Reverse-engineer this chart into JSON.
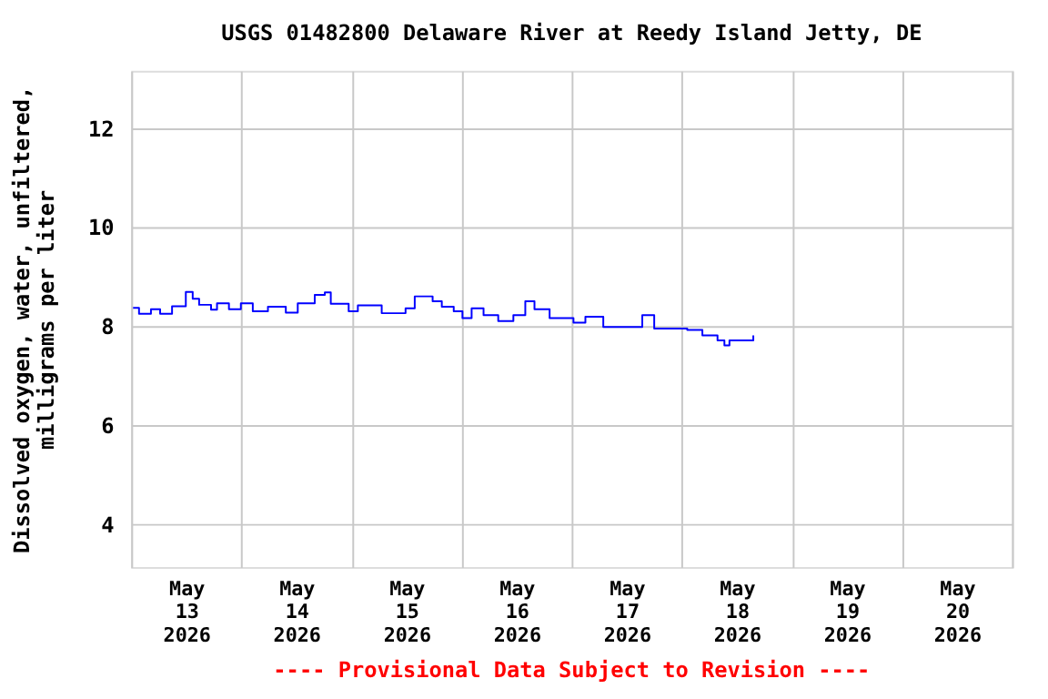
{
  "chart_data": {
    "type": "step",
    "title": "USGS 01482800 Delaware River at Reedy Island Jetty, DE",
    "ylabel": "Dissolved oxygen, water, unfiltered,\nmilligrams per liter",
    "annotations": [
      "---- Provisional Data Subject to Revision ----"
    ],
    "x": [
      "2026-05-13T00:24",
      "2026-05-13T01:42",
      "2026-05-13T04:18",
      "2026-05-13T06:18",
      "2026-05-13T08:54",
      "2026-05-13T11:54",
      "2026-05-13T13:24",
      "2026-05-13T14:48",
      "2026-05-13T17:24",
      "2026-05-13T18:42",
      "2026-05-13T21:18",
      "2026-05-13T23:54",
      "2026-05-14T02:30",
      "2026-05-14T05:48",
      "2026-05-14T09:42",
      "2026-05-14T12:18",
      "2026-05-14T16:00",
      "2026-05-14T18:12",
      "2026-05-14T19:30",
      "2026-05-14T23:24",
      "2026-05-15T01:24",
      "2026-05-15T06:36",
      "2026-05-15T11:48",
      "2026-05-15T13:48",
      "2026-05-15T17:42",
      "2026-05-15T19:42",
      "2026-05-15T22:18",
      "2026-05-16T00:12",
      "2026-05-16T02:12",
      "2026-05-16T04:48",
      "2026-05-16T08:00",
      "2026-05-16T11:18",
      "2026-05-16T13:54",
      "2026-05-16T15:54",
      "2026-05-16T19:12",
      "2026-05-17T00:24",
      "2026-05-17T03:00",
      "2026-05-17T06:54",
      "2026-05-17T13:24",
      "2026-05-17T15:24",
      "2026-05-17T18:00",
      "2026-05-17T21:18",
      "2026-05-18T01:12",
      "2026-05-18T03:12",
      "2026-05-18T04:30",
      "2026-05-18T07:48",
      "2026-05-18T09:18",
      "2026-05-18T10:24",
      "2026-05-18T13:36",
      "2026-05-18T15:36"
    ],
    "series": [
      {
        "color": "#0000ff",
        "values": [
          8.37,
          8.25,
          8.34,
          8.25,
          8.4,
          8.69,
          8.55,
          8.43,
          8.33,
          8.46,
          8.34,
          8.46,
          8.3,
          8.39,
          8.27,
          8.46,
          8.63,
          8.68,
          8.45,
          8.3,
          8.42,
          8.26,
          8.36,
          8.6,
          8.5,
          8.39,
          8.3,
          8.16,
          8.36,
          8.22,
          8.1,
          8.22,
          8.5,
          8.34,
          8.16,
          8.07,
          8.19,
          7.98,
          7.98,
          8.22,
          7.95,
          7.95,
          7.92,
          7.92,
          7.81,
          7.71,
          7.61,
          7.71,
          7.71,
          7.81
        ]
      }
    ],
    "xlim": [
      "2026-05-13T00:00",
      "2026-05-21T00:00"
    ],
    "xticks": [
      {
        "value": "2026-05-13T00:00",
        "label": null
      },
      {
        "value": "2026-05-13T12:00",
        "label": "May\n13\n2026"
      },
      {
        "value": "2026-05-14T00:00",
        "label": null
      },
      {
        "value": "2026-05-14T12:00",
        "label": "May\n14\n2026"
      },
      {
        "value": "2026-05-15T00:00",
        "label": null
      },
      {
        "value": "2026-05-15T12:00",
        "label": "May\n15\n2026"
      },
      {
        "value": "2026-05-16T00:00",
        "label": null
      },
      {
        "value": "2026-05-16T12:00",
        "label": "May\n16\n2026"
      },
      {
        "value": "2026-05-17T00:00",
        "label": null
      },
      {
        "value": "2026-05-17T12:00",
        "label": "May\n17\n2026"
      },
      {
        "value": "2026-05-18T00:00",
        "label": null
      },
      {
        "value": "2026-05-18T12:00",
        "label": "May\n18\n2026"
      },
      {
        "value": "2026-05-19T00:00",
        "label": null
      },
      {
        "value": "2026-05-19T12:00",
        "label": "May\n19\n2026"
      },
      {
        "value": "2026-05-20T00:00",
        "label": null
      },
      {
        "value": "2026-05-20T12:00",
        "label": "May\n20\n2026"
      },
      {
        "value": "2026-05-21T00:00",
        "label": null
      }
    ],
    "ylim": [
      3.13,
      13.16
    ],
    "yticks": [
      4,
      6,
      8,
      10,
      12
    ],
    "grid": true
  }
}
